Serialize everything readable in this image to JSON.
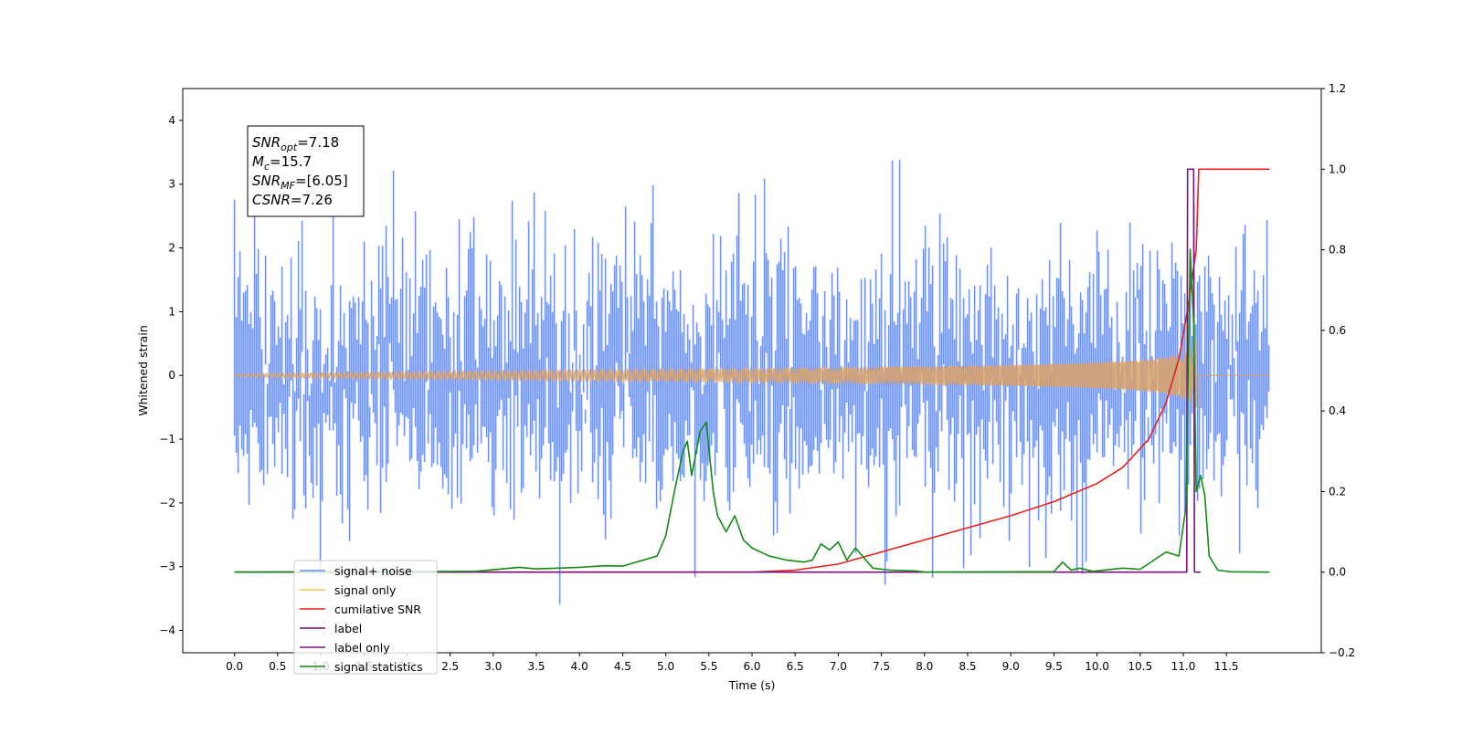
{
  "chart_data": {
    "type": "line",
    "xlabel": "Time (s)",
    "ylabel": "Whitened strain",
    "xlim": [
      -0.6,
      12.6
    ],
    "ylim": [
      -4.35,
      4.5
    ],
    "y2lim": [
      -0.2,
      1.2
    ],
    "x_ticks": [
      "0.0",
      "0.5",
      "1.0",
      "1.5",
      "2.0",
      "2.5",
      "3.0",
      "3.5",
      "4.0",
      "4.5",
      "5.0",
      "5.5",
      "6.0",
      "6.5",
      "7.0",
      "7.5",
      "8.0",
      "8.5",
      "9.0",
      "9.5",
      "10.0",
      "10.5",
      "11.0",
      "11.5"
    ],
    "y_ticks": [
      "4",
      "3",
      "2",
      "1",
      "0",
      "−1",
      "−2",
      "−3",
      "−4"
    ],
    "y2_ticks": [
      "1.2",
      "1.0",
      "0.8",
      "0.6",
      "0.4",
      "0.2",
      "0.0",
      "−0.2"
    ],
    "annotation": {
      "lines": [
        {
          "sym": "SNR",
          "sub": "opt",
          "val": "=7.18"
        },
        {
          "sym": "M",
          "sub": "c",
          "val": "=15.7"
        },
        {
          "sym": "SNR",
          "sub": "MF",
          "val": "=[6.05]"
        },
        {
          "sym": "CSNR",
          "sub": "",
          "val": "=7.26"
        }
      ]
    },
    "legend": {
      "placement": "lower-left",
      "entries": [
        {
          "label": "signal+ noise",
          "color": "#6d8ee8"
        },
        {
          "label": "signal only",
          "color": "#ffc04d"
        },
        {
          "label": "cumilative SNR",
          "color": "#e8201c"
        },
        {
          "label": "label",
          "color": "#7a127a"
        },
        {
          "label": "label only",
          "color": "#7a127a"
        },
        {
          "label": "signal statistics",
          "color": "#138a13"
        }
      ]
    },
    "series": [
      {
        "name": "signal+ noise",
        "axis": "left",
        "color": "#6d8ee8",
        "generator": "gaussian_noise",
        "x_range": [
          0.0,
          12.0
        ],
        "sigma": 1.0,
        "seed": 7
      },
      {
        "name": "signal only",
        "axis": "left",
        "color": "#d8a168",
        "generator": "chirp",
        "x_range": [
          0.0,
          12.0
        ],
        "merger": 11.18,
        "peak_amplitude": 0.6
      },
      {
        "name": "cumilative SNR",
        "axis": "right",
        "x": [
          0,
          6.0,
          6.5,
          7.0,
          7.5,
          8.0,
          8.5,
          9.0,
          9.5,
          10.0,
          10.3,
          10.6,
          10.8,
          10.95,
          11.05,
          11.15,
          11.18,
          11.2,
          11.5,
          12.0
        ],
        "y": [
          0,
          0,
          0.005,
          0.02,
          0.05,
          0.08,
          0.11,
          0.14,
          0.175,
          0.22,
          0.26,
          0.33,
          0.42,
          0.53,
          0.65,
          0.8,
          1.0,
          1.0,
          1.0,
          1.0
        ]
      },
      {
        "name": "label",
        "axis": "right",
        "x": [
          0,
          11.04,
          11.05,
          11.12,
          11.13,
          11.2,
          11.2
        ],
        "y": [
          0,
          0,
          1,
          1,
          0,
          0,
          0
        ]
      },
      {
        "name": "signal statistics",
        "axis": "right",
        "x": [
          0,
          2.8,
          3.3,
          3.5,
          4.0,
          4.3,
          4.5,
          4.9,
          5.0,
          5.1,
          5.2,
          5.25,
          5.3,
          5.4,
          5.47,
          5.55,
          5.6,
          5.7,
          5.8,
          5.9,
          6.0,
          6.2,
          6.4,
          6.6,
          6.7,
          6.8,
          6.9,
          7.0,
          7.1,
          7.2,
          7.3,
          7.4,
          7.6,
          7.9,
          8.0,
          9.5,
          9.6,
          9.7,
          9.8,
          9.95,
          10.3,
          10.5,
          10.8,
          10.95,
          11.03,
          11.08,
          11.12,
          11.15,
          11.2,
          11.25,
          11.3,
          11.4,
          11.55,
          12.0
        ],
        "y": [
          0,
          0.002,
          0.012,
          0.008,
          0.012,
          0.016,
          0.015,
          0.04,
          0.09,
          0.2,
          0.3,
          0.325,
          0.24,
          0.35,
          0.372,
          0.2,
          0.14,
          0.1,
          0.14,
          0.08,
          0.06,
          0.04,
          0.03,
          0.025,
          0.03,
          0.07,
          0.055,
          0.075,
          0.03,
          0.06,
          0.035,
          0.01,
          0.005,
          0.003,
          0,
          0.001,
          0.025,
          0.005,
          0.01,
          0.002,
          0.01,
          0.007,
          0.05,
          0.04,
          0.16,
          0.8,
          0.62,
          0.2,
          0.24,
          0.19,
          0.04,
          0.005,
          0.001,
          0
        ]
      }
    ],
    "grid": false
  }
}
